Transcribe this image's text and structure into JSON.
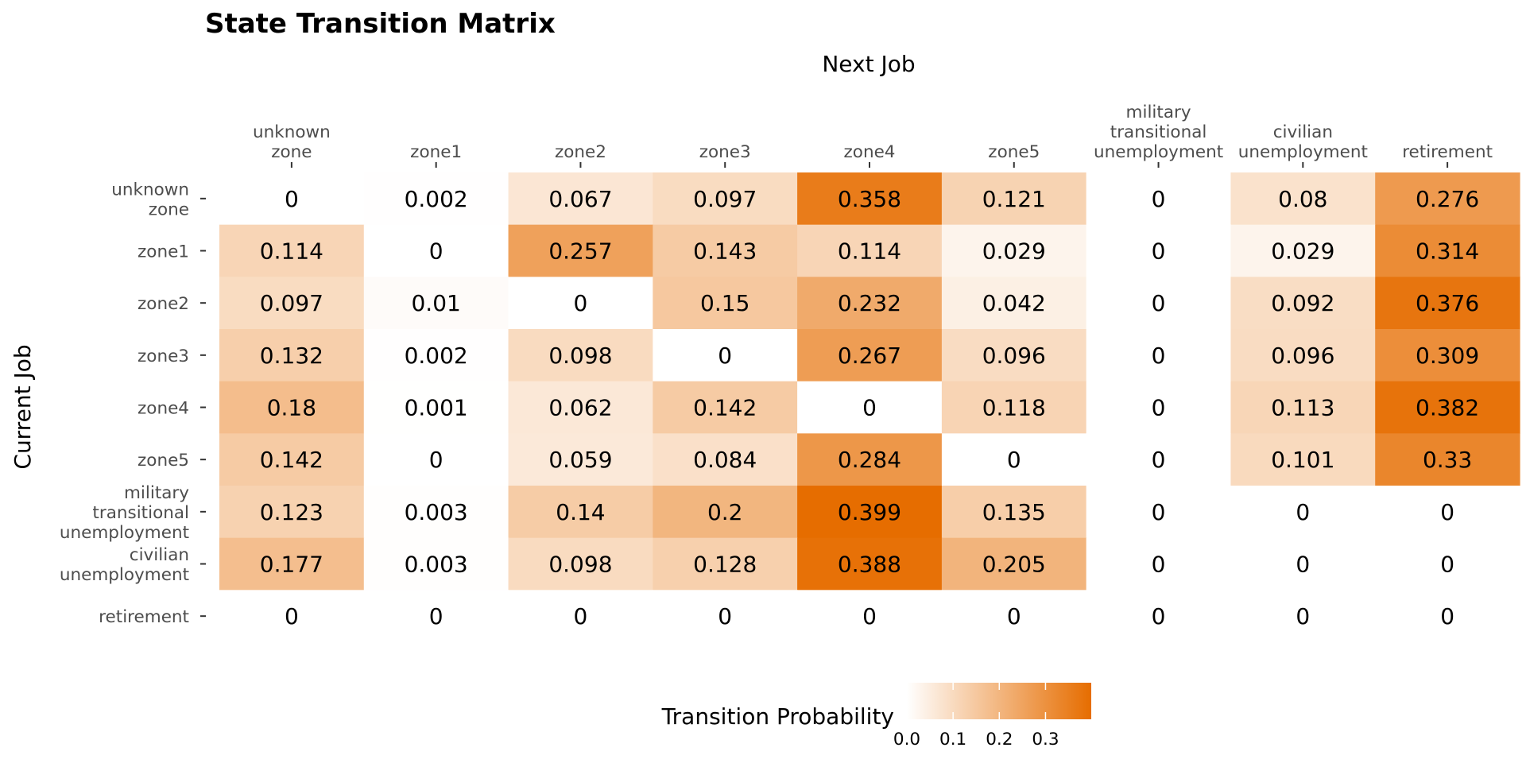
{
  "chart_data": {
    "type": "heatmap",
    "title": "State Transition Matrix",
    "xlabel": "Next Job",
    "ylabel": "Current Job",
    "x_categories": [
      "unknown\nzone",
      "zone1",
      "zone2",
      "zone3",
      "zone4",
      "zone5",
      "military\ntransitional\nunemployment",
      "civilian\nunemployment",
      "retirement"
    ],
    "y_categories": [
      "unknown\nzone",
      "zone1",
      "zone2",
      "zone3",
      "zone4",
      "zone5",
      "military\ntransitional\nunemployment",
      "civilian\nunemployment",
      "retirement"
    ],
    "values": [
      [
        0,
        0.002,
        0.067,
        0.097,
        0.358,
        0.121,
        0,
        0.08,
        0.276
      ],
      [
        0.114,
        0,
        0.257,
        0.143,
        0.114,
        0.029,
        0,
        0.029,
        0.314
      ],
      [
        0.097,
        0.01,
        0,
        0.15,
        0.232,
        0.042,
        0,
        0.092,
        0.376
      ],
      [
        0.132,
        0.002,
        0.098,
        0,
        0.267,
        0.096,
        0,
        0.096,
        0.309
      ],
      [
        0.18,
        0.001,
        0.062,
        0.142,
        0,
        0.118,
        0,
        0.113,
        0.382
      ],
      [
        0.142,
        0,
        0.059,
        0.084,
        0.284,
        0,
        0,
        0.101,
        0.33
      ],
      [
        0.123,
        0.003,
        0.14,
        0.2,
        0.399,
        0.135,
        0,
        0,
        0
      ],
      [
        0.177,
        0.003,
        0.098,
        0.128,
        0.388,
        0.205,
        0,
        0,
        0
      ],
      [
        0,
        0,
        0,
        0,
        0,
        0,
        0,
        0,
        0
      ]
    ],
    "legend": {
      "title": "Transition Probability",
      "ticks": [
        0.0,
        0.1,
        0.2,
        0.3
      ],
      "tick_labels": [
        "0.0",
        "0.1",
        "0.2",
        "0.3"
      ],
      "range": [
        0,
        0.399
      ],
      "placement": "bottom"
    },
    "color_scale": {
      "low": "#ffffff",
      "high": "#e66d00"
    },
    "x_axis_position": "top",
    "grid": false
  }
}
